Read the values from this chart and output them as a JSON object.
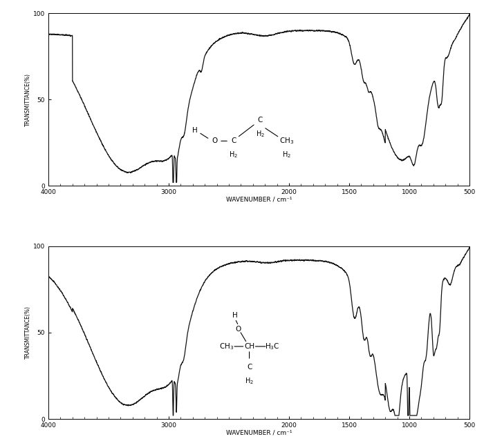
{
  "xlabel": "WAVENUMBER / cm⁻¹",
  "ylabel": "TRANSMITTANCE(%)",
  "xlim": [
    4000,
    500
  ],
  "ylim": [
    0,
    100
  ],
  "yticks": [
    0,
    50,
    100
  ],
  "xticks": [
    4000,
    3000,
    2000,
    1500,
    1000,
    500
  ],
  "background_color": "#ffffff",
  "line_color": "#111111",
  "linewidth": 0.9
}
